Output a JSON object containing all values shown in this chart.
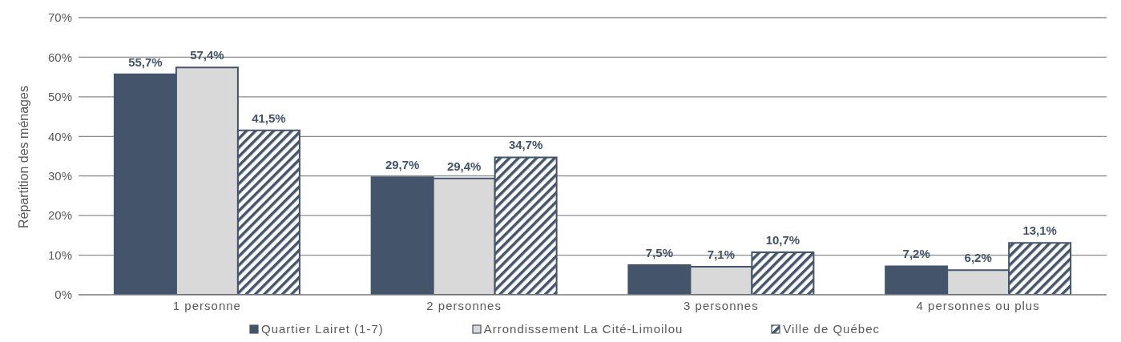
{
  "chart_data": {
    "type": "bar",
    "ylabel": "Répartition des ménages",
    "categories": [
      "1 personne",
      "2 personnes",
      "3 personnes",
      "4 personnes ou plus"
    ],
    "series": [
      {
        "name": "Quartier Lairet (1-7)",
        "color": "#44546a",
        "values": [
          55.7,
          29.7,
          7.5,
          7.2
        ],
        "value_labels": [
          "55,7%",
          "29,7%",
          "7,5%",
          "7,2%"
        ]
      },
      {
        "name": "Arrondissement La Cité-Limoilou",
        "color": "#d9d9d9",
        "values": [
          57.4,
          29.4,
          7.1,
          6.2
        ],
        "value_labels": [
          "57,4%",
          "29,4%",
          "7,1%",
          "6,2%"
        ]
      },
      {
        "name": "Ville de Québec",
        "color": "#44546a",
        "values": [
          41.5,
          34.7,
          10.7,
          13.1
        ],
        "value_labels": [
          "41,5%",
          "34,7%",
          "10,7%",
          "13,1%"
        ]
      }
    ],
    "ylim": [
      0,
      70
    ],
    "yticks": [
      {
        "value": 0,
        "label": "0%"
      },
      {
        "value": 10,
        "label": "10%"
      },
      {
        "value": 20,
        "label": "20%"
      },
      {
        "value": 30,
        "label": "30%"
      },
      {
        "value": 40,
        "label": "40%"
      },
      {
        "value": 50,
        "label": "50%"
      },
      {
        "value": 60,
        "label": "60%"
      },
      {
        "value": 70,
        "label": "70%"
      }
    ],
    "grid": "y",
    "legend": "bottom"
  }
}
